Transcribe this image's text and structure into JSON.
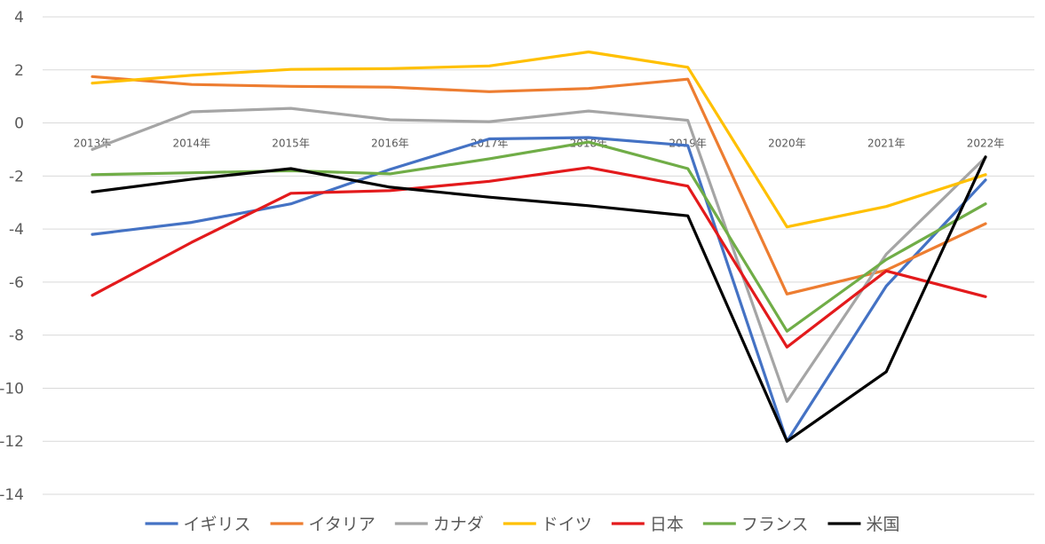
{
  "chart_data": {
    "type": "line",
    "title": "",
    "xlabel": "",
    "ylabel": "",
    "categories": [
      "2013年",
      "2014年",
      "2015年",
      "2016年",
      "2017年",
      "2018年",
      "2019年",
      "2020年",
      "2021年",
      "2022年"
    ],
    "ylim": [
      -14,
      4
    ],
    "yticks": [
      4,
      2,
      0,
      -2,
      -4,
      -6,
      -8,
      -10,
      -12,
      -14
    ],
    "grid": true,
    "legend_position": "bottom",
    "series": [
      {
        "name": "イギリス",
        "color": "#4472c4",
        "values": [
          -4.2,
          -3.75,
          -3.05,
          -1.75,
          -0.6,
          -0.55,
          -0.85,
          -12.0,
          -6.15,
          -2.15
        ]
      },
      {
        "name": "イタリア",
        "color": "#ed7d31",
        "values": [
          1.75,
          1.45,
          1.38,
          1.35,
          1.18,
          1.3,
          1.65,
          -6.45,
          -5.55,
          -3.8
        ]
      },
      {
        "name": "カナダ",
        "color": "#a5a5a5",
        "values": [
          -1.0,
          0.42,
          0.55,
          0.12,
          0.05,
          0.45,
          0.1,
          -10.5,
          -4.95,
          -1.3
        ]
      },
      {
        "name": "ドイツ",
        "color": "#ffc000",
        "values": [
          1.5,
          1.8,
          2.02,
          2.05,
          2.15,
          2.68,
          2.1,
          -3.92,
          -3.15,
          -1.95
        ]
      },
      {
        "name": "日本",
        "color": "#e31a1c",
        "values": [
          -6.5,
          -4.5,
          -2.65,
          -2.55,
          -2.2,
          -1.68,
          -2.38,
          -8.45,
          -5.58,
          -6.55
        ]
      },
      {
        "name": "フランス",
        "color": "#70ad47",
        "values": [
          -1.95,
          -1.88,
          -1.8,
          -1.92,
          -1.35,
          -0.72,
          -1.72,
          -7.85,
          -5.15,
          -3.05
        ]
      },
      {
        "name": "米国",
        "color": "#000000",
        "values": [
          -2.6,
          -2.12,
          -1.72,
          -2.42,
          -2.8,
          -3.12,
          -3.5,
          -12.0,
          -9.38,
          -1.28
        ]
      }
    ]
  }
}
